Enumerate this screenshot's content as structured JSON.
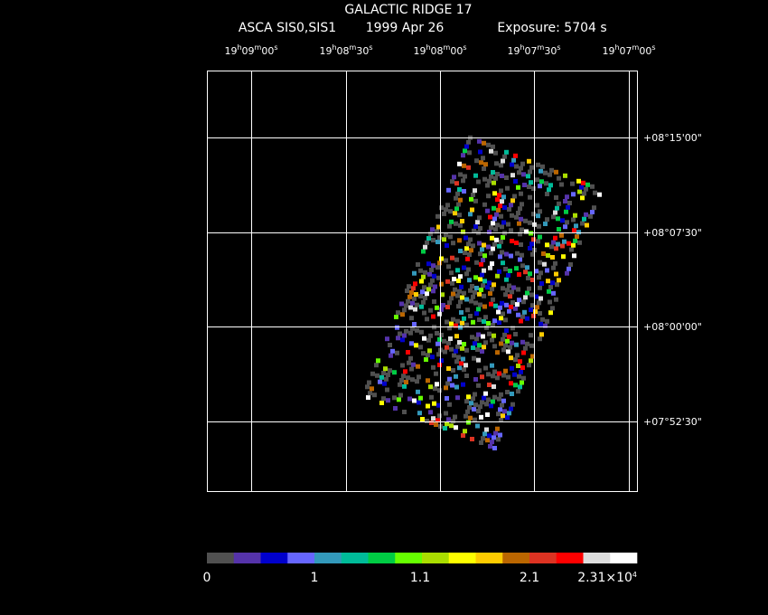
{
  "header": {
    "title": "GALACTIC RIDGE 17",
    "instrument": "ASCA SIS0,SIS1",
    "date": "1999 Apr 26",
    "exposure": "Exposure: 5704 s"
  },
  "ra_labels": [
    [
      "19",
      "h",
      "09",
      "m",
      "00",
      "s"
    ],
    [
      "19",
      "h",
      "08",
      "m",
      "30",
      "s"
    ],
    [
      "19",
      "h",
      "08",
      "m",
      "00",
      "s"
    ],
    [
      "19",
      "h",
      "07",
      "m",
      "30",
      "s"
    ],
    [
      "19",
      "h",
      "07",
      "m",
      "00",
      "s"
    ]
  ],
  "dec_labels": [
    "+08°15'00\"",
    "+08°07'30\"",
    "+08°00'00\"",
    "+07°52'30\""
  ],
  "colorbar": {
    "colors": [
      "#505050",
      "#5533aa",
      "#0000cc",
      "#6666ff",
      "#3399bb",
      "#00bb99",
      "#00cc44",
      "#66ff00",
      "#aadd00",
      "#ffff00",
      "#ffcc00",
      "#bb6600",
      "#dd3322",
      "#ff0000",
      "#dddddd",
      "#ffffff"
    ],
    "labels": [
      [
        "0"
      ],
      [
        "1"
      ],
      [
        "1.1"
      ],
      [
        "2.1"
      ],
      [
        "2.31×10",
        "4"
      ]
    ]
  }
}
